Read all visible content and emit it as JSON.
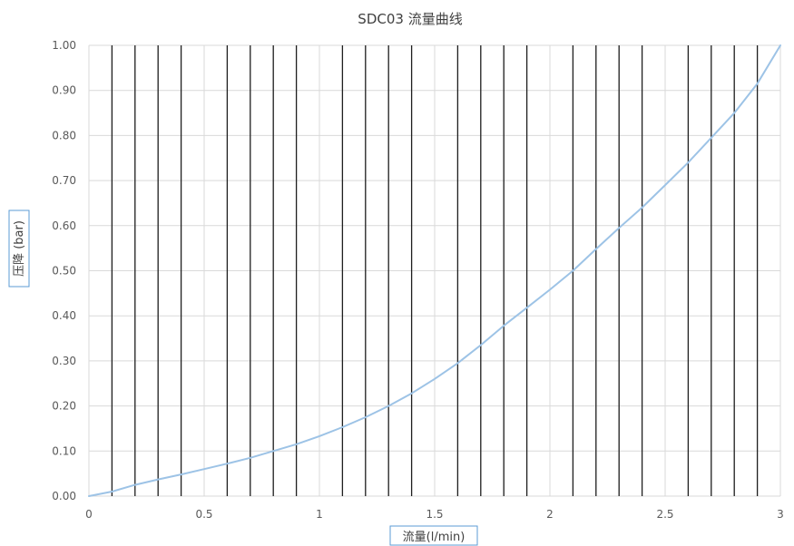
{
  "chart_data": {
    "type": "line",
    "title": "SDC03 流量曲线",
    "xlabel": "流量(l/min)",
    "ylabel": "压降 (bar)",
    "xlim": [
      0,
      3
    ],
    "ylim": [
      0,
      1
    ],
    "x_ticks": [
      "0",
      "0.5",
      "1",
      "1.5",
      "2",
      "2.5",
      "3"
    ],
    "y_ticks": [
      "0.00",
      "0.10",
      "0.20",
      "0.30",
      "0.40",
      "0.50",
      "0.60",
      "0.70",
      "0.80",
      "0.90",
      "1.00"
    ],
    "grid": true,
    "series": [
      {
        "color": "#9dc3e6",
        "x": [
          0,
          0.1,
          0.2,
          0.3,
          0.4,
          0.5,
          0.6,
          0.7,
          0.8,
          0.9,
          1.0,
          1.1,
          1.2,
          1.3,
          1.4,
          1.5,
          1.6,
          1.7,
          1.8,
          1.9,
          2.0,
          2.1,
          2.2,
          2.3,
          2.4,
          2.5,
          2.6,
          2.7,
          2.8,
          2.9,
          3.0
        ],
        "values": [
          0.0,
          0.01,
          0.025,
          0.037,
          0.048,
          0.06,
          0.072,
          0.085,
          0.1,
          0.115,
          0.133,
          0.153,
          0.175,
          0.2,
          0.228,
          0.26,
          0.295,
          0.335,
          0.378,
          0.418,
          0.458,
          0.5,
          0.548,
          0.595,
          0.64,
          0.69,
          0.74,
          0.795,
          0.85,
          0.915,
          1.0
        ]
      }
    ],
    "dark_vertical_lines_x": [
      0.1,
      0.2,
      0.3,
      0.4,
      0.6,
      0.7,
      0.8,
      0.9,
      1.1,
      1.2,
      1.3,
      1.4,
      1.6,
      1.7,
      1.8,
      1.9,
      2.1,
      2.2,
      2.3,
      2.4,
      2.6,
      2.7,
      2.8,
      2.9
    ],
    "light_grid_color": "#d9d9d9",
    "dark_line_color": "#1f1f1f",
    "label_box_color": "#5b9bd5"
  }
}
